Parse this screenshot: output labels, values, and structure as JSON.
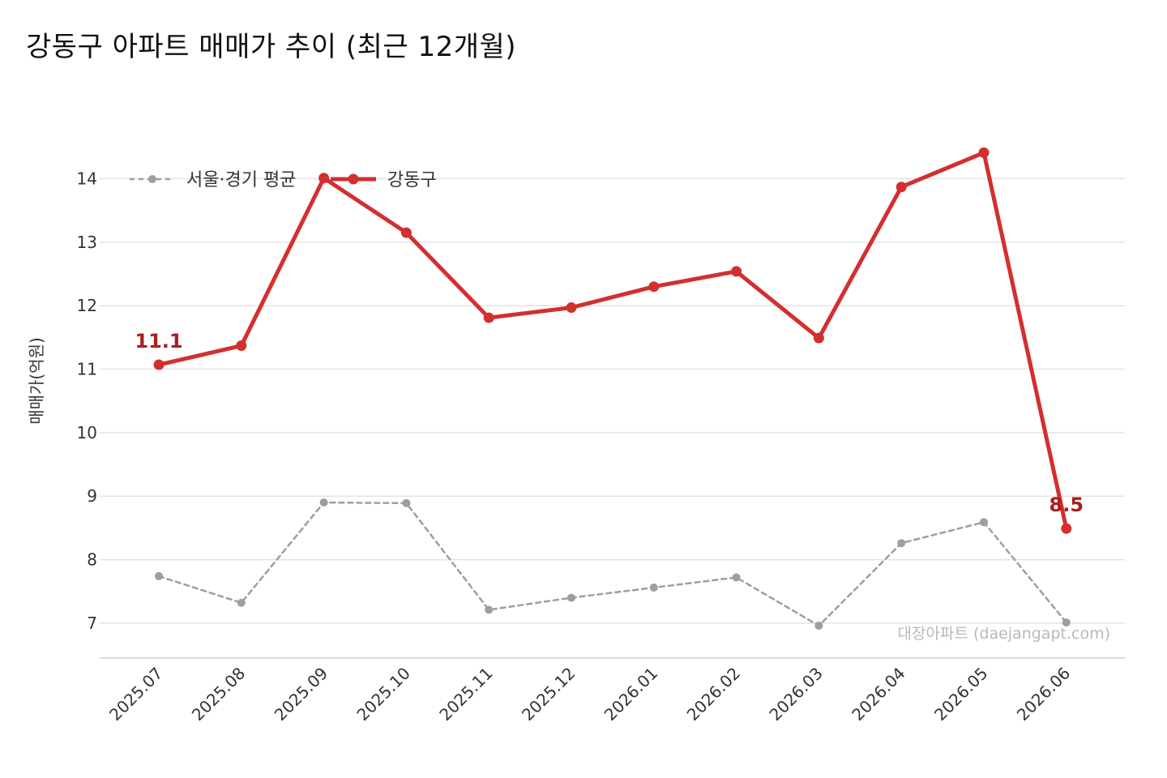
{
  "chart_data": {
    "type": "line",
    "title": "강동구 아파트 매매가 추이 (최근 12개월)",
    "xlabel": "",
    "ylabel": "매매가(억원)",
    "categories": [
      "2025.07",
      "2025.08",
      "2025.09",
      "2025.10",
      "2025.11",
      "2025.12",
      "2026.01",
      "2026.02",
      "2026.03",
      "2026.04",
      "2026.05",
      "2026.06"
    ],
    "series": [
      {
        "name": "서울·경기 평균",
        "values": [
          7.74,
          7.32,
          8.9,
          8.89,
          7.21,
          7.4,
          7.56,
          7.72,
          6.96,
          8.26,
          8.59,
          7.01
        ],
        "color": "#9a9ea5",
        "style": "dashed"
      },
      {
        "name": "강동구",
        "values": [
          11.07,
          11.37,
          14.01,
          13.15,
          11.81,
          11.97,
          12.3,
          12.54,
          11.49,
          13.87,
          14.41,
          8.49
        ],
        "color": "#d32f2f",
        "style": "solid"
      }
    ],
    "data_labels": [
      {
        "series": "강동구",
        "index": 0,
        "text": "11.1"
      },
      {
        "series": "강동구",
        "index": 11,
        "text": "8.5"
      }
    ],
    "yticks": [
      7,
      8,
      9,
      10,
      11,
      12,
      13,
      14
    ],
    "ylim": [
      6.45,
      14.9
    ],
    "grid": true,
    "legend_position": "top-left",
    "watermark": "대장아파트 (daejangapt.com)"
  }
}
